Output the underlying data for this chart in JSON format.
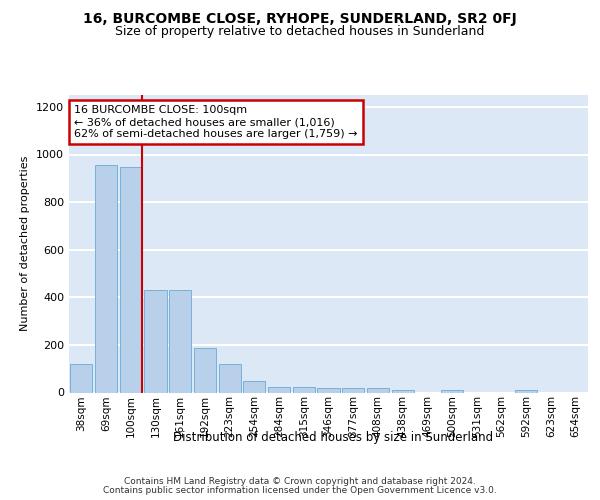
{
  "title": "16, BURCOMBE CLOSE, RYHOPE, SUNDERLAND, SR2 0FJ",
  "subtitle": "Size of property relative to detached houses in Sunderland",
  "xlabel": "Distribution of detached houses by size in Sunderland",
  "ylabel": "Number of detached properties",
  "categories": [
    "38sqm",
    "69sqm",
    "100sqm",
    "130sqm",
    "161sqm",
    "192sqm",
    "223sqm",
    "254sqm",
    "284sqm",
    "315sqm",
    "346sqm",
    "377sqm",
    "408sqm",
    "438sqm",
    "469sqm",
    "500sqm",
    "531sqm",
    "562sqm",
    "592sqm",
    "623sqm",
    "654sqm"
  ],
  "values": [
    120,
    955,
    948,
    430,
    430,
    185,
    120,
    48,
    22,
    22,
    20,
    20,
    18,
    10,
    0,
    10,
    0,
    0,
    10,
    0,
    0
  ],
  "bar_color": "#b8d0ea",
  "bar_edge_color": "#6aaad4",
  "highlight_bar_index": 2,
  "highlight_line_color": "#cc0000",
  "annotation_text": "16 BURCOMBE CLOSE: 100sqm\n← 36% of detached houses are smaller (1,016)\n62% of semi-detached houses are larger (1,759) →",
  "annotation_box_edgecolor": "#cc0000",
  "ylim": [
    0,
    1250
  ],
  "yticks": [
    0,
    200,
    400,
    600,
    800,
    1000,
    1200
  ],
  "footer_line1": "Contains HM Land Registry data © Crown copyright and database right 2024.",
  "footer_line2": "Contains public sector information licensed under the Open Government Licence v3.0.",
  "bg_color": "#dce8f5",
  "grid_color": "#ffffff",
  "title_fontsize": 10,
  "subtitle_fontsize": 9,
  "ylabel_fontsize": 8,
  "xlabel_fontsize": 8.5,
  "tick_fontsize": 7.5,
  "ytick_fontsize": 8,
  "footer_fontsize": 6.5
}
